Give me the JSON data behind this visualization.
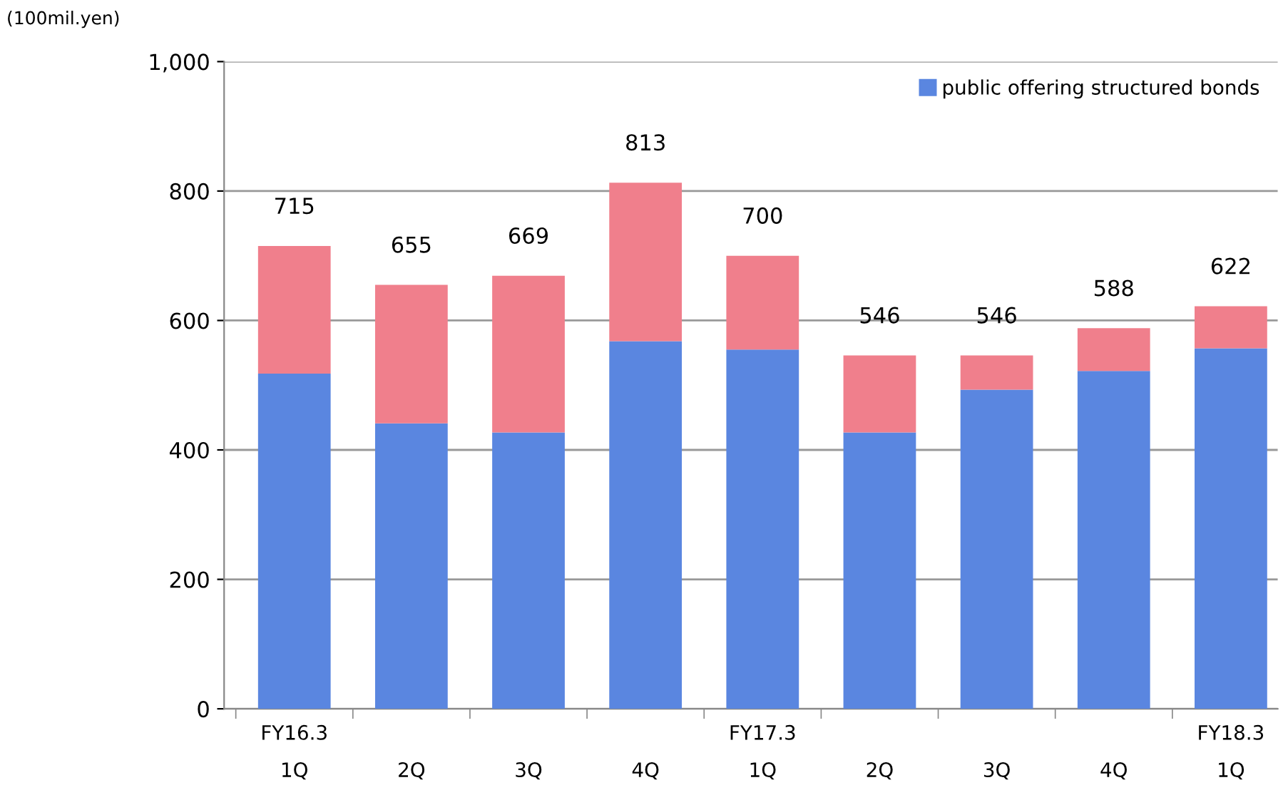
{
  "chart_data": {
    "type": "bar",
    "stacked": true,
    "ylabel": "(100mil.yen)",
    "categories": [
      "FY16.3\n1Q",
      "\n2Q",
      "\n3Q",
      "\n4Q",
      "FY17.3\n1Q",
      "\n2Q",
      "\n3Q",
      "\n4Q",
      "FY18.3\n1Q"
    ],
    "series": [
      {
        "name": "public offering structured bonds",
        "color": "#5a86e0",
        "values": [
          518,
          441,
          427,
          568,
          555,
          427,
          493,
          522,
          557
        ]
      },
      {
        "color": "#f07f8c",
        "values": [
          197,
          214,
          242,
          245,
          145,
          119,
          53,
          66,
          65
        ]
      }
    ],
    "totals": [
      "715",
      "655",
      "669",
      "813",
      "700",
      "546",
      "546",
      "588",
      "622"
    ],
    "ylim": [
      0,
      1000
    ],
    "yticks": [
      0,
      200,
      400,
      600,
      800,
      {
        "value": 1000,
        "label": "1,000"
      }
    ],
    "grid": "y",
    "legend": "top right"
  }
}
